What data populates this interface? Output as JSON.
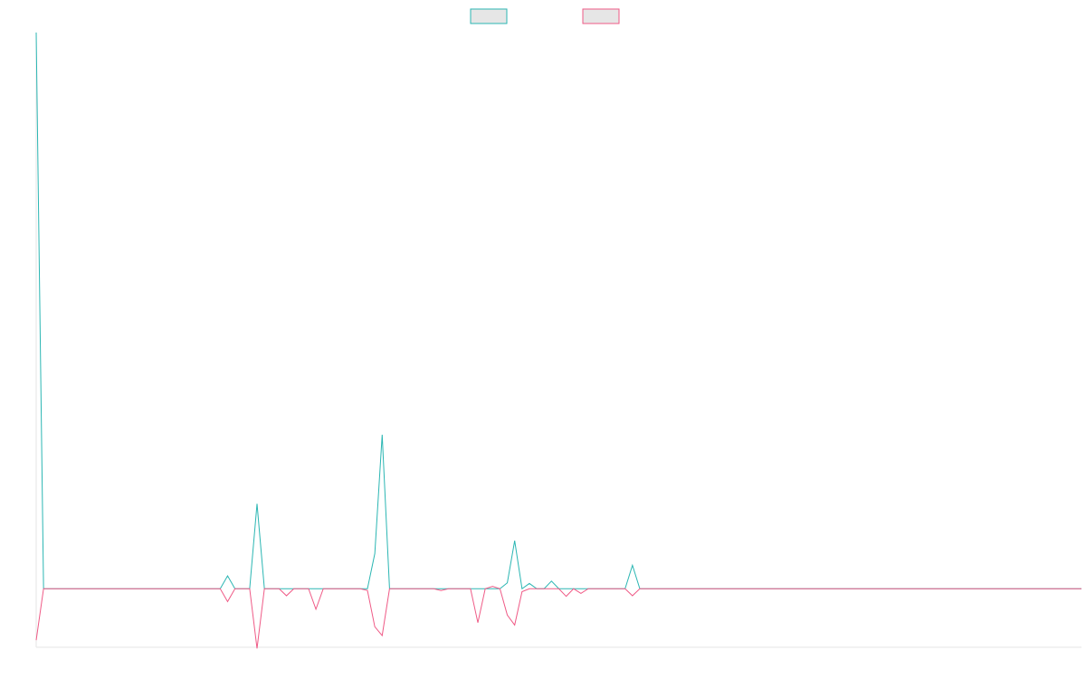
{
  "chart_data": {
    "type": "line",
    "title": "",
    "xlabel": "",
    "ylabel": "",
    "legend_placement": "top-center",
    "grid": false,
    "x_count": 143,
    "ylim": [
      -100,
      950
    ],
    "baseline": 0,
    "colors": {
      "series_a": "#2bb6b3",
      "series_b": "#ef5a86",
      "legend_fill": "#e6e6e6"
    },
    "series": [
      {
        "key": "series_a",
        "name": "",
        "color": "#2bb6b3",
        "spikes": [
          [
            0,
            950
          ],
          [
            26,
            22
          ],
          [
            30,
            145
          ],
          [
            34,
            0
          ],
          [
            38,
            0
          ],
          [
            45,
            0
          ],
          [
            46,
            60
          ],
          [
            47,
            263
          ],
          [
            55,
            0
          ],
          [
            60,
            0
          ],
          [
            64,
            10
          ],
          [
            65,
            82
          ],
          [
            66,
            0
          ],
          [
            67,
            9
          ],
          [
            70,
            13
          ],
          [
            72,
            0
          ],
          [
            74,
            0
          ],
          [
            81,
            40
          ]
        ]
      },
      {
        "key": "series_b",
        "name": "",
        "color": "#ef5a86",
        "spikes": [
          [
            0,
            -88
          ],
          [
            26,
            -22
          ],
          [
            30,
            -102
          ],
          [
            34,
            -12
          ],
          [
            38,
            -35
          ],
          [
            45,
            -3
          ],
          [
            46,
            -65
          ],
          [
            47,
            -80
          ],
          [
            55,
            -3
          ],
          [
            60,
            -58
          ],
          [
            62,
            4
          ],
          [
            64,
            -45
          ],
          [
            65,
            -62
          ],
          [
            66,
            -5
          ],
          [
            72,
            -13
          ],
          [
            74,
            -8
          ],
          [
            81,
            -12
          ]
        ]
      }
    ],
    "legend": [
      {
        "key": "series_a",
        "label": ""
      },
      {
        "key": "series_b",
        "label": ""
      }
    ]
  }
}
